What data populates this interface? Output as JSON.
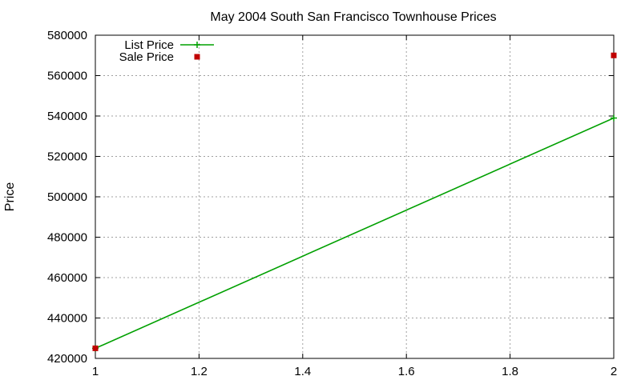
{
  "chart_data": {
    "type": "line",
    "title": "May 2004 South San Francisco Townhouse Prices",
    "xlabel": "",
    "ylabel": "Price",
    "xlim": [
      1,
      2
    ],
    "ylim": [
      420000,
      580000
    ],
    "x_ticks": [
      1,
      1.2,
      1.4,
      1.6,
      1.8,
      2
    ],
    "x_tick_labels": [
      "1",
      "1.2",
      "1.4",
      "1.6",
      "1.8",
      "2"
    ],
    "y_ticks": [
      420000,
      440000,
      460000,
      480000,
      500000,
      520000,
      540000,
      560000,
      580000
    ],
    "y_tick_labels": [
      "420000",
      "440000",
      "460000",
      "480000",
      "500000",
      "520000",
      "540000",
      "560000",
      "580000"
    ],
    "grid": true,
    "legend_position": "top-left",
    "series": [
      {
        "name": "List Price",
        "style": "linespoints",
        "color": "#00a000",
        "points": [
          {
            "x": 1,
            "y": 425000
          },
          {
            "x": 2,
            "y": 539000
          }
        ]
      },
      {
        "name": "Sale Price",
        "style": "points",
        "color": "#c00000",
        "points": [
          {
            "x": 1,
            "y": 425000
          },
          {
            "x": 2,
            "y": 570000
          }
        ]
      }
    ]
  }
}
